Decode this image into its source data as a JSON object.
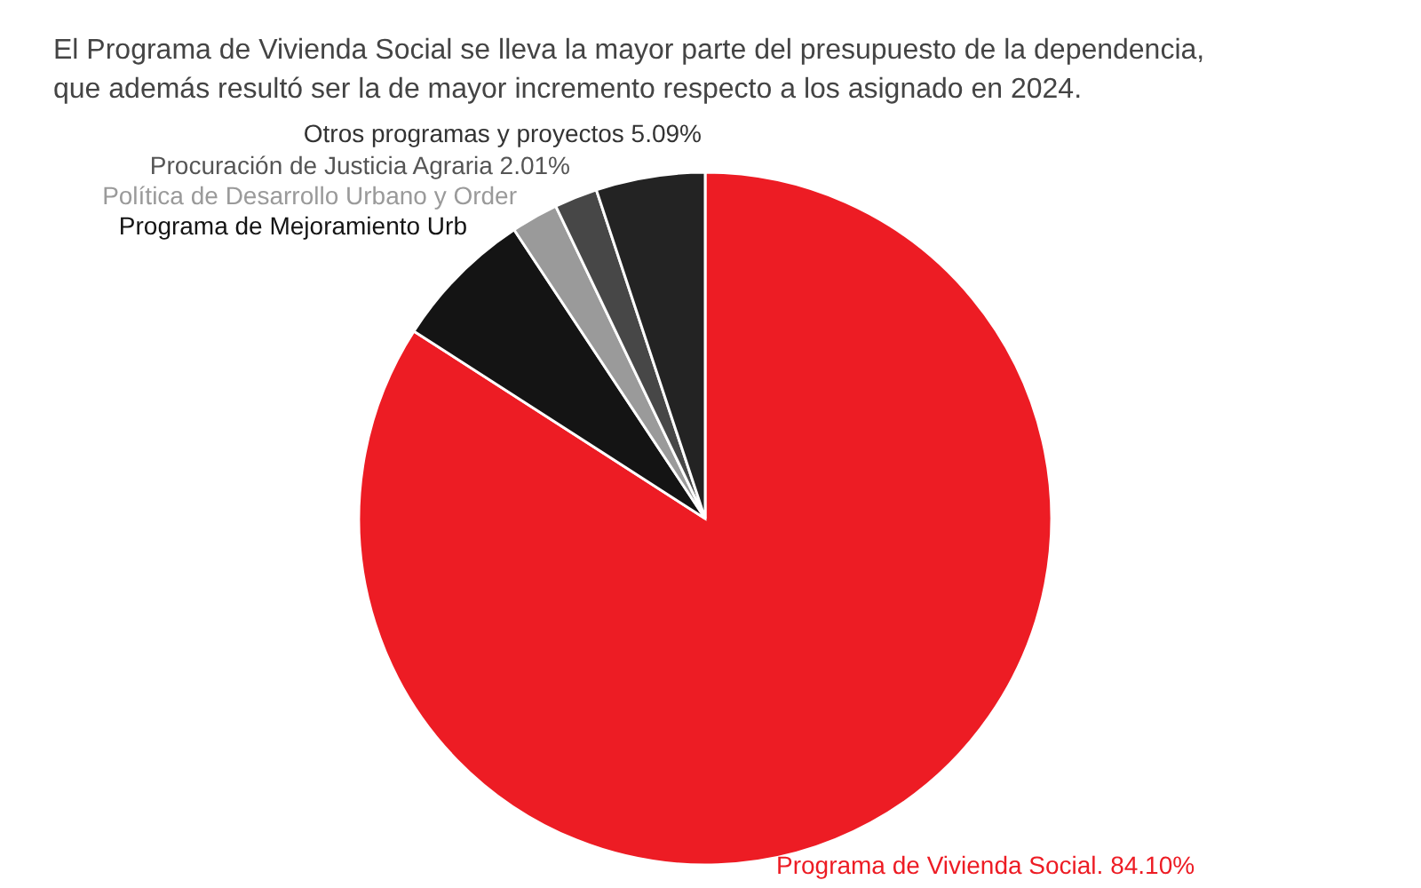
{
  "chart_data": {
    "type": "pie",
    "title": "El Programa de Vivienda Social se lleva la mayor parte del presupuesto de la dependencia,\nque además resultó ser la de mayor incremento respecto a los asignado en 2024.",
    "categories": [
      "Programa de Vivienda Social. 84.10%",
      "Programa de Mejoramiento Urb",
      "Política de Desarrollo Urbano y Order",
      "Procuración de Justicia Agraria 2.01%",
      "Otros programas y proyectos 5.09%"
    ],
    "values": [
      84.1,
      6.6,
      2.2,
      2.01,
      5.09
    ],
    "colors": [
      "#ed1c24",
      "#141414",
      "#9a9a9a",
      "#474747",
      "#232323"
    ]
  }
}
